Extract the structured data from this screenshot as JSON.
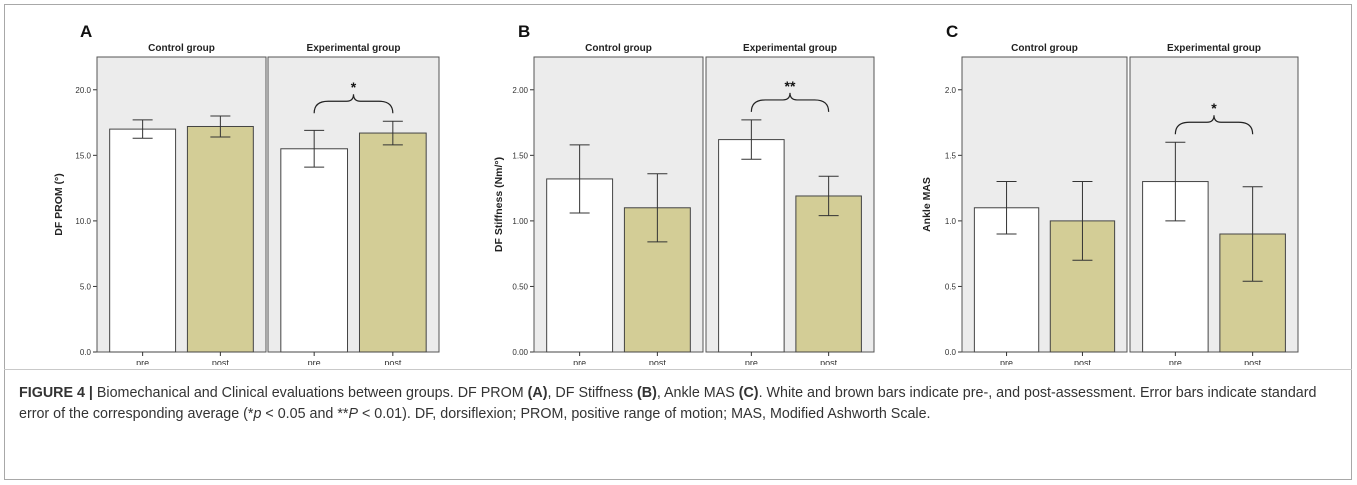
{
  "colors": {
    "panel_bg": "#ececec",
    "pre_bar": "#ffffff",
    "post_bar": "#d3cd96",
    "axis": "#333333"
  },
  "chart_data": [
    {
      "type": "bar",
      "panel_label": "A",
      "ylabel": "DF PROM (°)",
      "ylim": [
        0,
        22.5
      ],
      "yticks": [
        0,
        5,
        10,
        15,
        20
      ],
      "ytick_labels": [
        "0.0",
        "5.0",
        "10.0",
        "15.0",
        "20.0"
      ],
      "groups": [
        {
          "name": "Control group",
          "categories": [
            "pre",
            "post"
          ],
          "values": [
            17.0,
            17.2
          ],
          "errors": [
            0.7,
            0.8
          ],
          "sig": ""
        },
        {
          "name": "Experimental group",
          "categories": [
            "pre",
            "post"
          ],
          "values": [
            15.5,
            16.7
          ],
          "errors": [
            1.4,
            0.9
          ],
          "sig": "*"
        }
      ]
    },
    {
      "type": "bar",
      "panel_label": "B",
      "ylabel": "DF Stiffness (Nm/°)",
      "ylim": [
        0,
        2.25
      ],
      "yticks": [
        0,
        0.5,
        1.0,
        1.5,
        2.0
      ],
      "ytick_labels": [
        "0.00",
        "0.50",
        "1.00",
        "1.50",
        "2.00"
      ],
      "groups": [
        {
          "name": "Control group",
          "categories": [
            "pre",
            "post"
          ],
          "values": [
            1.32,
            1.1
          ],
          "errors": [
            0.26,
            0.26
          ],
          "sig": ""
        },
        {
          "name": "Experimental group",
          "categories": [
            "pre",
            "post"
          ],
          "values": [
            1.62,
            1.19
          ],
          "errors": [
            0.15,
            0.15
          ],
          "sig": "**"
        }
      ]
    },
    {
      "type": "bar",
      "panel_label": "C",
      "ylabel": "Ankle MAS",
      "ylim": [
        0,
        2.25
      ],
      "yticks": [
        0,
        0.5,
        1.0,
        1.5,
        2.0
      ],
      "ytick_labels": [
        "0.0",
        "0.5",
        "1.0",
        "1.5",
        "2.0"
      ],
      "groups": [
        {
          "name": "Control group",
          "categories": [
            "pre",
            "post"
          ],
          "values": [
            1.1,
            1.0
          ],
          "errors": [
            0.2,
            0.3
          ],
          "sig": ""
        },
        {
          "name": "Experimental group",
          "categories": [
            "pre",
            "post"
          ],
          "values": [
            1.3,
            0.9
          ],
          "errors": [
            0.3,
            0.36
          ],
          "sig": "*"
        }
      ]
    }
  ],
  "caption": {
    "figure_label": "FIGURE 4 |",
    "intro": " Biomechanical and Clinical evaluations between groups. DF PROM ",
    "ref_a": "(A)",
    "mid1": ", DF Stiffness ",
    "ref_b": "(B)",
    "mid2": ", Ankle MAS ",
    "ref_c": "(C)",
    "mid3": ". White and brown bars indicate pre-, and post-assessment. Error bars indicate standard error of the corresponding average (*",
    "p1": "p",
    "mid4": " < 0.05 and **",
    "p2": "P",
    "end": " < 0.01). DF, dorsiflexion; PROM, positive range of motion; MAS, Modified Ashworth Scale."
  }
}
